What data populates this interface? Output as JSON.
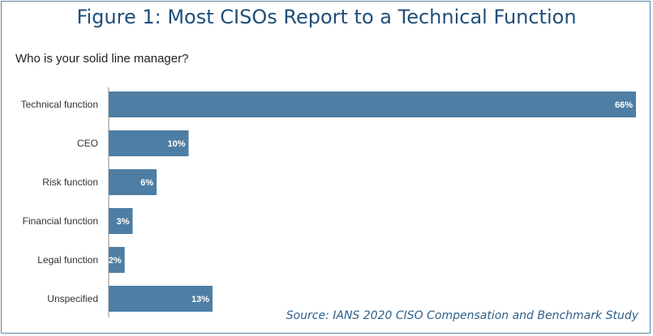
{
  "header": {
    "title": "Figure 1: Most CISOs Report to a Technical Function",
    "question": "Who is your solid line manager?",
    "source": "Source: IANS 2020 CISO Compensation and Benchmark Study"
  },
  "colors": {
    "bar": "#4e7ea4",
    "title": "#1f4e79",
    "axis": "#888888"
  },
  "chart_data": {
    "type": "bar",
    "orientation": "horizontal",
    "title": "Figure 1: Most CISOs Report to a Technical Function",
    "subtitle": "Who is your solid line manager?",
    "categories": [
      "Technical function",
      "CEO",
      "Risk function",
      "Financial function",
      "Legal function",
      "Unspecified"
    ],
    "values": [
      66,
      10,
      6,
      3,
      2,
      13
    ],
    "value_labels": [
      "66%",
      "10%",
      "6%",
      "3%",
      "2%",
      "13%"
    ],
    "xlabel": "",
    "ylabel": "",
    "xlim": [
      0,
      66
    ],
    "grid": false,
    "legend": "none"
  }
}
